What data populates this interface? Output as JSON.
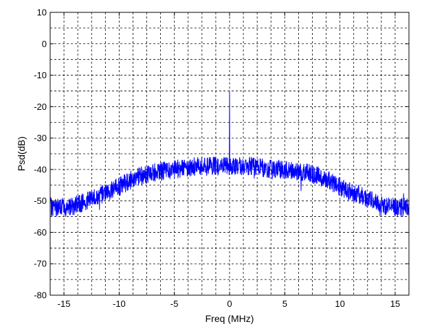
{
  "chart_data": {
    "type": "line",
    "title": "",
    "xlabel": "Freq (MHz)",
    "ylabel": "Psd(dB)",
    "xlim": [
      -16.25,
      16.25
    ],
    "ylim": [
      -80,
      10
    ],
    "x_ticks": [
      -15,
      -10,
      -5,
      0,
      5,
      10,
      15
    ],
    "y_ticks": [
      10,
      0,
      -10,
      -20,
      -30,
      -40,
      -50,
      -60,
      -70,
      -80
    ],
    "x_minor_step": 1.25,
    "y_minor_step": 5,
    "grid": true,
    "grid_style": "dashed",
    "line_color": "#0000ff",
    "series": [
      {
        "name": "",
        "noise_amplitude_db": 3,
        "envelope": {
          "x": [
            -16.25,
            -15,
            -14,
            -13,
            -12,
            -11,
            -10,
            -9,
            -8,
            -7,
            -6,
            -5,
            -4,
            -3,
            -2,
            -1,
            -0.2,
            0.2,
            1,
            2,
            3,
            4,
            5,
            6,
            7,
            8,
            9,
            10,
            11,
            12,
            13,
            14,
            15,
            16.25
          ],
          "y": [
            -52,
            -52,
            -51.5,
            -50,
            -48.5,
            -47,
            -45.5,
            -43.5,
            -42,
            -41,
            -40.5,
            -40,
            -39.5,
            -39,
            -39,
            -39,
            -39,
            -39,
            -39,
            -39,
            -39.5,
            -40,
            -40,
            -40.5,
            -41,
            -42,
            -43.5,
            -45.5,
            -47,
            -48.5,
            -50,
            -51.5,
            -52,
            -52
          ]
        },
        "spike": {
          "x": 0,
          "y": -15
        }
      }
    ]
  }
}
